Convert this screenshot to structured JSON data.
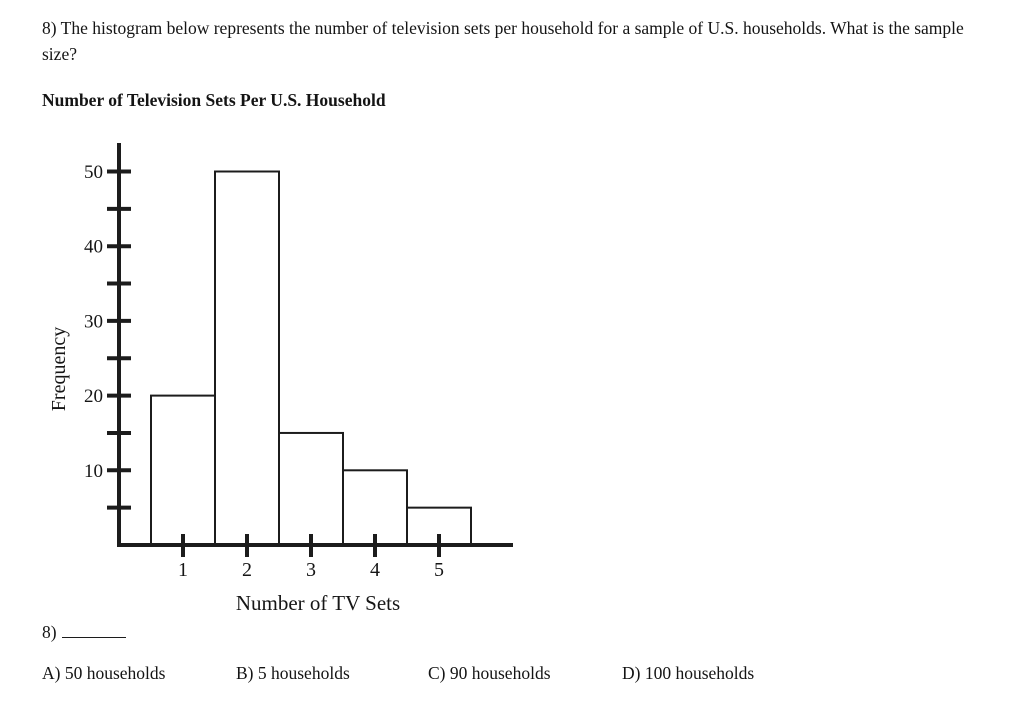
{
  "question": {
    "text": "8) The histogram below represents the number of television sets per household for a sample of U.S. households. What is the sample size?"
  },
  "chart_data": {
    "type": "bar",
    "title": "Number of Television Sets Per U.S. Household",
    "categories": [
      "1",
      "2",
      "3",
      "4",
      "5"
    ],
    "values": [
      20,
      50,
      15,
      10,
      5
    ],
    "xlabel": "Number of TV Sets",
    "ylabel": "Frequency",
    "ylim": [
      0,
      55
    ],
    "y_major_ticks": [
      10,
      20,
      30,
      40,
      50
    ],
    "y_minor_ticks": [
      5,
      15,
      25,
      35,
      45
    ],
    "grid": false,
    "legend": false,
    "bar_fill": "#ffffff",
    "bar_stroke": "#1c1c1c",
    "axis_color": "#1c1c1c"
  },
  "answer_line": {
    "label": "8)"
  },
  "choices": [
    "A) 50 households",
    "B) 5 households",
    "C) 90 households",
    "D) 100 households"
  ]
}
